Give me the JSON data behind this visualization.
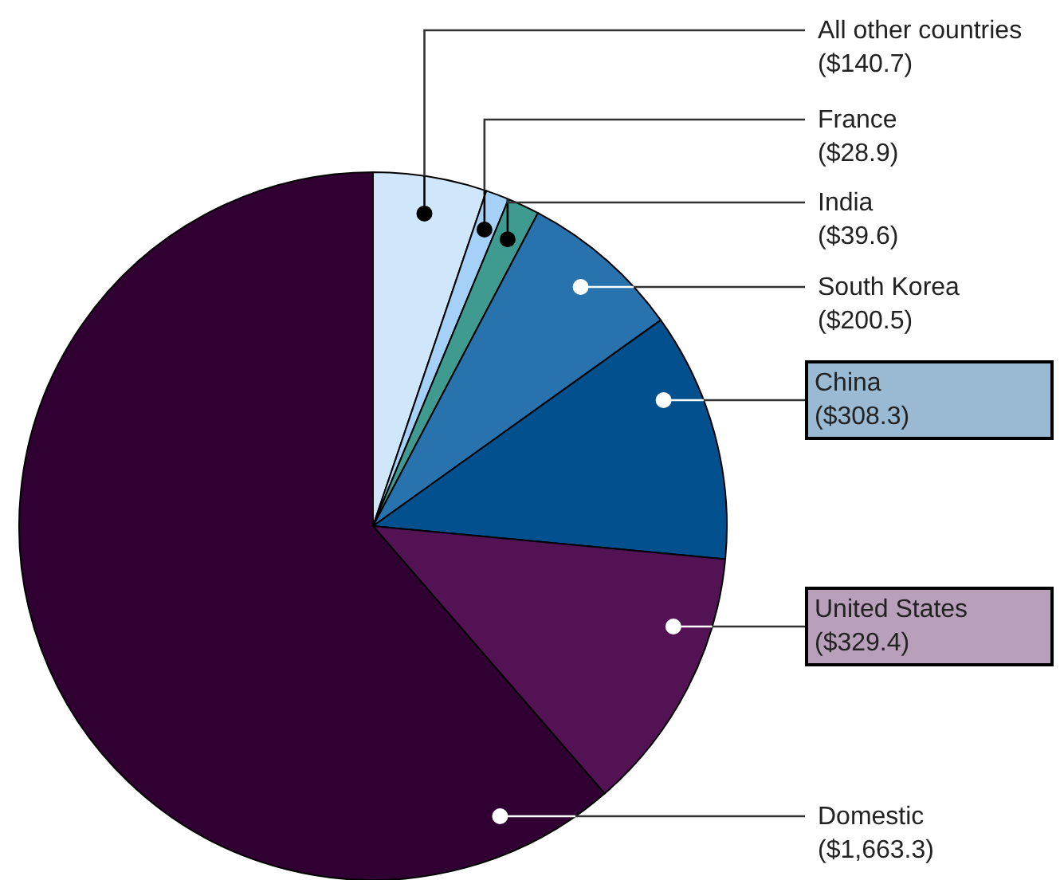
{
  "chart_data": {
    "type": "pie",
    "categories": [
      "All other countries",
      "France",
      "India",
      "South Korea",
      "China",
      "United States",
      "Domestic"
    ],
    "values": [
      140.7,
      28.9,
      39.6,
      200.5,
      308.3,
      329.4,
      1663.3
    ],
    "value_labels": [
      "($140.7)",
      "($28.9)",
      "($39.6)",
      "($200.5)",
      "($308.3)",
      "($329.4)",
      "($1,663.3)"
    ],
    "colors": [
      "#cfe6fb",
      "#a5d0f8",
      "#3f9a8f",
      "#2872ae",
      "#03508f",
      "#521253",
      "#310032"
    ]
  }
}
